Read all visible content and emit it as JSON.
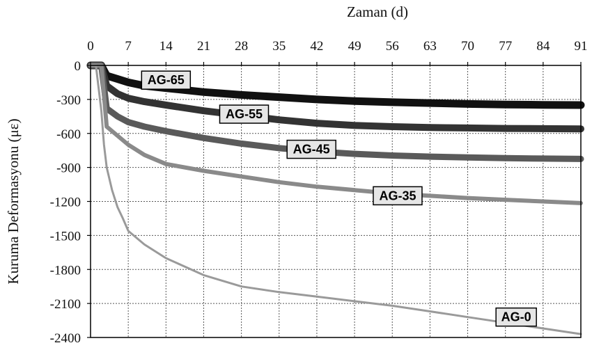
{
  "chart_data": {
    "type": "line",
    "xlabel": "Zaman (d)",
    "ylabel": "Kuruma Deformasyonu (με)",
    "xlim": [
      0,
      91
    ],
    "ylim": [
      -2400,
      0
    ],
    "xticks": [
      0,
      7,
      14,
      21,
      28,
      35,
      42,
      49,
      56,
      63,
      70,
      77,
      84,
      91
    ],
    "yticks": [
      0,
      -300,
      -600,
      -900,
      -1200,
      -1500,
      -1800,
      -2100,
      -2400
    ],
    "x_axis_position": "top",
    "grid": true,
    "series": [
      {
        "name": "AG-65",
        "color": "#111111",
        "x": [
          0,
          1,
          2,
          3,
          5,
          7,
          10,
          14,
          21,
          28,
          35,
          42,
          49,
          56,
          63,
          70,
          77,
          84,
          91
        ],
        "values": [
          0,
          0,
          0,
          -90,
          -120,
          -150,
          -180,
          -200,
          -235,
          -260,
          -280,
          -300,
          -315,
          -325,
          -332,
          -340,
          -345,
          -348,
          -350
        ]
      },
      {
        "name": "AG-55",
        "color": "#333333",
        "x": [
          0,
          1,
          2,
          3,
          5,
          7,
          10,
          14,
          21,
          28,
          35,
          42,
          49,
          56,
          63,
          70,
          77,
          84,
          91
        ],
        "values": [
          0,
          0,
          0,
          -180,
          -250,
          -290,
          -320,
          -350,
          -400,
          -440,
          -480,
          -510,
          -530,
          -540,
          -548,
          -552,
          -556,
          -558,
          -560
        ]
      },
      {
        "name": "AG-45",
        "color": "#5a5a5a",
        "x": [
          0,
          1,
          2,
          3,
          5,
          7,
          10,
          14,
          21,
          28,
          35,
          42,
          49,
          56,
          63,
          70,
          77,
          84,
          91
        ],
        "values": [
          0,
          0,
          0,
          -380,
          -450,
          -500,
          -540,
          -580,
          -640,
          -690,
          -730,
          -760,
          -780,
          -795,
          -805,
          -812,
          -818,
          -822,
          -825
        ]
      },
      {
        "name": "AG-35",
        "color": "#8a8a8a",
        "x": [
          0,
          1,
          2,
          3,
          5,
          7,
          10,
          14,
          21,
          28,
          35,
          42,
          49,
          56,
          63,
          70,
          77,
          84,
          91
        ],
        "values": [
          0,
          0,
          0,
          -540,
          -620,
          -700,
          -790,
          -870,
          -930,
          -980,
          -1030,
          -1070,
          -1100,
          -1130,
          -1150,
          -1170,
          -1185,
          -1200,
          -1215
        ]
      },
      {
        "name": "AG-0",
        "color": "#9a9a9a",
        "x": [
          0,
          1,
          2,
          2.5,
          3,
          4,
          5,
          6,
          7,
          10,
          14,
          21,
          28,
          35,
          42,
          49,
          56,
          63,
          70,
          77,
          84,
          91
        ],
        "values": [
          0,
          0,
          -400,
          -700,
          -900,
          -1100,
          -1250,
          -1350,
          -1460,
          -1580,
          -1700,
          -1850,
          -1950,
          -2000,
          -2040,
          -2080,
          -2120,
          -2170,
          -2220,
          -2270,
          -2320,
          -2370
        ]
      }
    ],
    "annotations": [
      {
        "text": "AG-65",
        "x": 14,
        "y": -130
      },
      {
        "text": "AG-55",
        "x": 28.5,
        "y": -430
      },
      {
        "text": "AG-45",
        "x": 41,
        "y": -740
      },
      {
        "text": "AG-35",
        "x": 57,
        "y": -1150
      },
      {
        "text": "AG-0",
        "x": 79,
        "y": -2220
      }
    ]
  }
}
